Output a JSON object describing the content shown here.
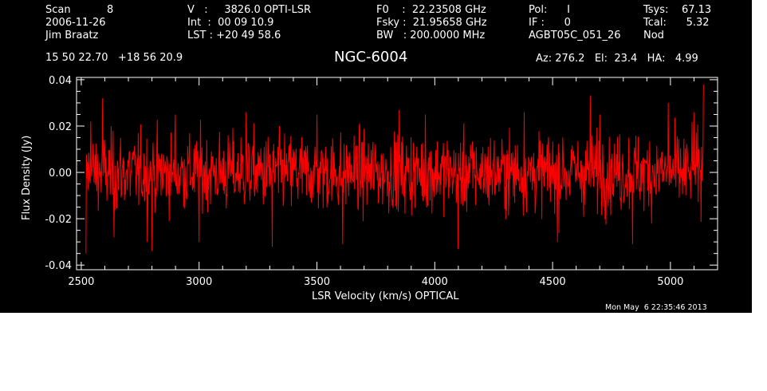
{
  "header": {
    "col1": [
      "Scan           8",
      "2006-11-26",
      "Jim Braatz"
    ],
    "col2": [
      "V   :     3826.0 OPTI-LSR",
      "Int  :  00 09 10.9",
      "LST : +20 49 58.6"
    ],
    "col3": [
      "F0    :  22.23508 GHz",
      "Fsky :  21.95658 GHz",
      "BW   : 200.0000 MHz"
    ],
    "col4": [
      "Pol:      I",
      "IF :      0",
      "AGBT05C_051_26"
    ],
    "col5": [
      "Tsys:    67.13",
      "Tcal:      5.32",
      "Nod"
    ],
    "coords": "15 50 22.70   +18 56 20.9",
    "title": "NGC-6004",
    "pointing": "Az: 276.2   El:  23.4   HA:   4.99"
  },
  "footer": {
    "timestamp": "Mon May  6 22:35:46 2013"
  },
  "colors": {
    "background": "#000000",
    "axes": "#ffffff",
    "trace": "#ff0000",
    "page": "#ffffff"
  },
  "chart_data": {
    "type": "line",
    "title": "NGC-6004",
    "xlabel": "LSR Velocity (km/s) OPTICAL",
    "ylabel": "Flux Density (Jy)",
    "xlim": [
      2480,
      5200
    ],
    "ylim": [
      -0.042,
      0.041
    ],
    "xticks": [
      2500,
      3000,
      3500,
      4000,
      4500,
      5000
    ],
    "yticks": [
      -0.04,
      -0.02,
      0.0,
      0.02,
      0.04
    ],
    "ytick_labels": [
      "-0.04",
      "-0.02",
      "0.00",
      "0.02",
      "0.04"
    ],
    "grid": false,
    "series": [
      {
        "x_start": 2520,
        "x_end": 5140,
        "n_points": 1300,
        "noise_rms": 0.011,
        "mean": 0.0,
        "envelope_points": [
          [
            2520,
            -0.035
          ],
          [
            2540,
            0.022
          ],
          [
            2590,
            0.032
          ],
          [
            2640,
            -0.028
          ],
          [
            2780,
            -0.03
          ],
          [
            2800,
            -0.034
          ],
          [
            2900,
            0.025
          ],
          [
            3000,
            -0.03
          ],
          [
            3200,
            0.026
          ],
          [
            3310,
            -0.032
          ],
          [
            3500,
            0.025
          ],
          [
            3610,
            -0.031
          ],
          [
            3850,
            0.027
          ],
          [
            3960,
            0.025
          ],
          [
            4100,
            -0.033
          ],
          [
            4380,
            0.026
          ],
          [
            4520,
            -0.03
          ],
          [
            4660,
            0.033
          ],
          [
            4700,
            0.025
          ],
          [
            4840,
            -0.031
          ],
          [
            4990,
            0.03
          ],
          [
            5100,
            0.026
          ],
          [
            5140,
            0.038
          ]
        ]
      }
    ]
  }
}
